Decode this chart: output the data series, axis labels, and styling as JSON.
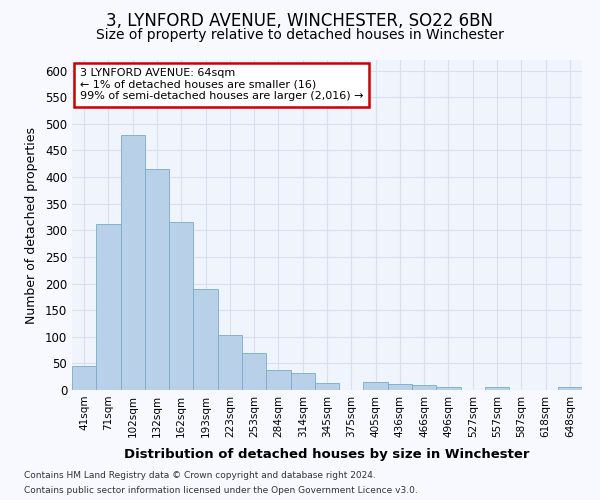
{
  "title": "3, LYNFORD AVENUE, WINCHESTER, SO22 6BN",
  "subtitle": "Size of property relative to detached houses in Winchester",
  "xlabel": "Distribution of detached houses by size in Winchester",
  "ylabel": "Number of detached properties",
  "categories": [
    "41sqm",
    "71sqm",
    "102sqm",
    "132sqm",
    "162sqm",
    "193sqm",
    "223sqm",
    "253sqm",
    "284sqm",
    "314sqm",
    "345sqm",
    "375sqm",
    "405sqm",
    "436sqm",
    "466sqm",
    "496sqm",
    "527sqm",
    "557sqm",
    "587sqm",
    "618sqm",
    "648sqm"
  ],
  "values": [
    46,
    312,
    480,
    415,
    315,
    190,
    104,
    70,
    38,
    32,
    14,
    0,
    15,
    11,
    9,
    6,
    0,
    5,
    0,
    0,
    5
  ],
  "bar_color": "#b8d0e8",
  "bar_edge_color": "#7aaac8",
  "ylim": [
    0,
    620
  ],
  "yticks": [
    0,
    50,
    100,
    150,
    200,
    250,
    300,
    350,
    400,
    450,
    500,
    550,
    600
  ],
  "annotation_title": "3 LYNFORD AVENUE: 64sqm",
  "annotation_line1": "← 1% of detached houses are smaller (16)",
  "annotation_line2": "99% of semi-detached houses are larger (2,016) →",
  "annotation_box_color": "#ffffff",
  "annotation_border_color": "#cc0000",
  "footer_line1": "Contains HM Land Registry data © Crown copyright and database right 2024.",
  "footer_line2": "Contains public sector information licensed under the Open Government Licence v3.0.",
  "bg_color": "#f8f8ff",
  "plot_bg_color": "#f0f4fc",
  "grid_color": "#d8dff0",
  "title_fontsize": 12,
  "subtitle_fontsize": 10
}
